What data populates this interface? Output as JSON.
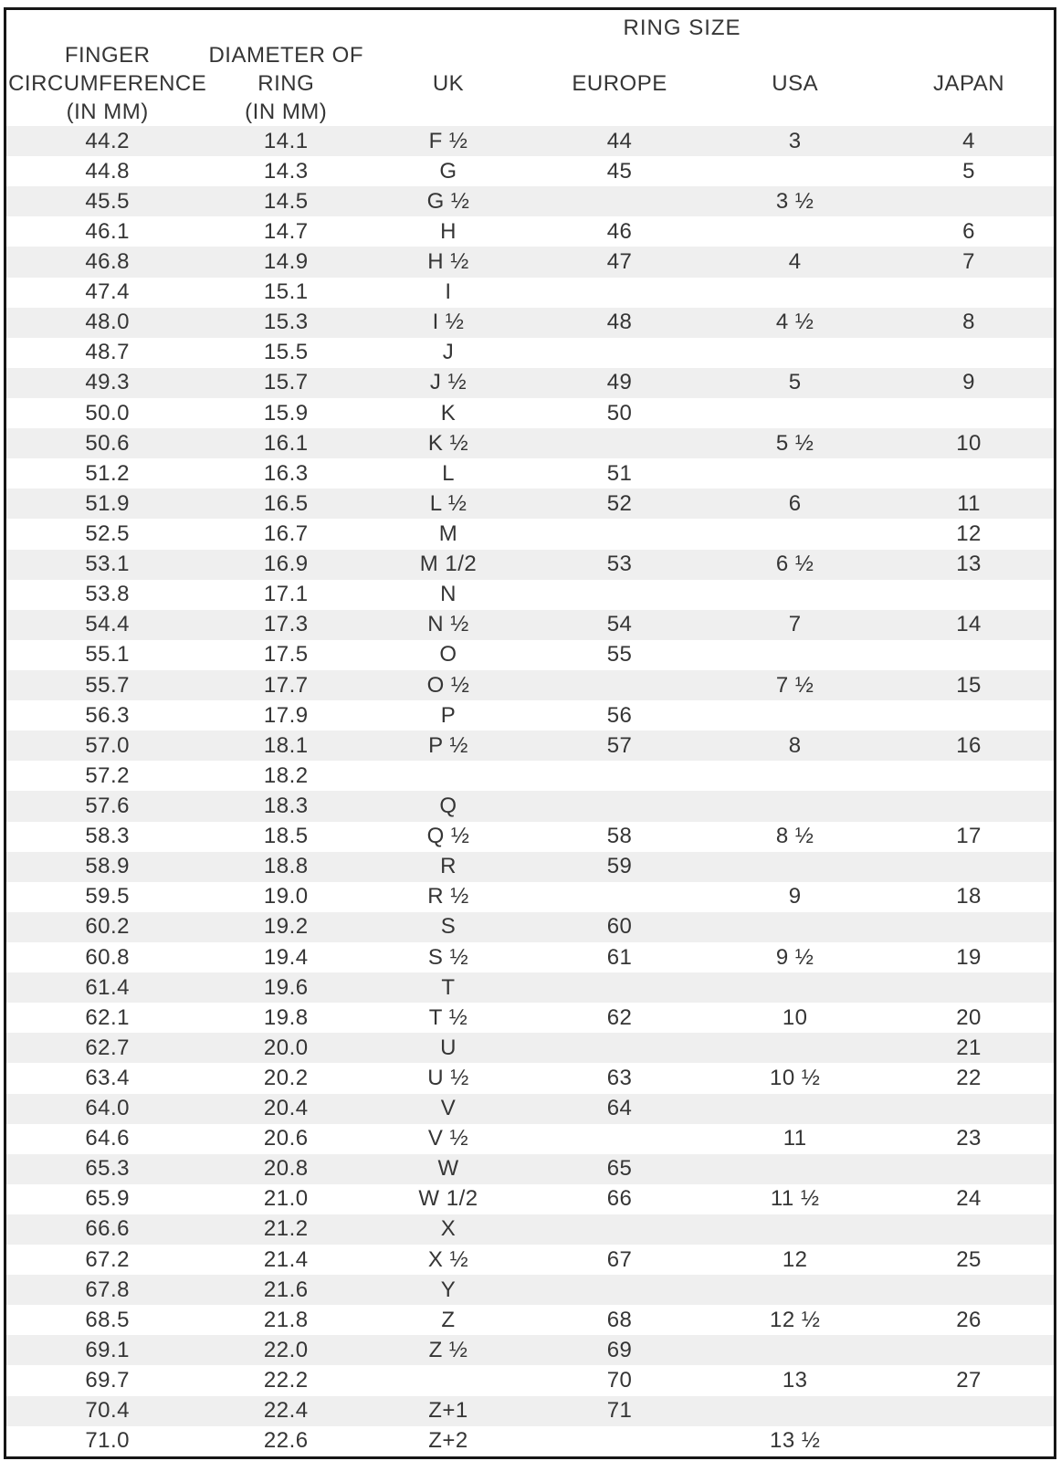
{
  "header": {
    "group_title": "RING SIZE",
    "columns": [
      {
        "id": "circumference",
        "lines": [
          "FINGER",
          "CIRCUMFERENCE",
          "(IN MM)"
        ]
      },
      {
        "id": "diameter",
        "lines": [
          "DIAMETER OF",
          "RING",
          "(IN MM)"
        ]
      },
      {
        "id": "uk",
        "lines": [
          "UK"
        ]
      },
      {
        "id": "europe",
        "lines": [
          "EUROPE"
        ]
      },
      {
        "id": "usa",
        "lines": [
          "USA"
        ]
      },
      {
        "id": "japan",
        "lines": [
          "JAPAN"
        ]
      }
    ]
  },
  "rows": [
    [
      "44.2",
      "14.1",
      "F ½",
      "44",
      "3",
      "4"
    ],
    [
      "44.8",
      "14.3",
      "G",
      "45",
      "",
      "5"
    ],
    [
      "45.5",
      "14.5",
      "G ½",
      "",
      "3 ½",
      ""
    ],
    [
      "46.1",
      "14.7",
      "H",
      "46",
      "",
      "6"
    ],
    [
      "46.8",
      "14.9",
      "H ½",
      "47",
      "4",
      "7"
    ],
    [
      "47.4",
      "15.1",
      "I",
      "",
      "",
      ""
    ],
    [
      "48.0",
      "15.3",
      "I ½",
      "48",
      "4 ½",
      "8"
    ],
    [
      "48.7",
      "15.5",
      "J",
      "",
      "",
      ""
    ],
    [
      "49.3",
      "15.7",
      "J ½",
      "49",
      "5",
      "9"
    ],
    [
      "50.0",
      "15.9",
      "K",
      "50",
      "",
      ""
    ],
    [
      "50.6",
      "16.1",
      "K ½",
      "",
      "5 ½",
      "10"
    ],
    [
      "51.2",
      "16.3",
      "L",
      "51",
      "",
      ""
    ],
    [
      "51.9",
      "16.5",
      "L ½",
      "52",
      "6",
      "11"
    ],
    [
      "52.5",
      "16.7",
      "M",
      "",
      "",
      "12"
    ],
    [
      "53.1",
      "16.9",
      "M 1/2",
      "53",
      "6 ½",
      "13"
    ],
    [
      "53.8",
      "17.1",
      "N",
      "",
      "",
      ""
    ],
    [
      "54.4",
      "17.3",
      "N ½",
      "54",
      "7",
      "14"
    ],
    [
      "55.1",
      "17.5",
      "O",
      "55",
      "",
      ""
    ],
    [
      "55.7",
      "17.7",
      "O ½",
      "",
      "7 ½",
      "15"
    ],
    [
      "56.3",
      "17.9",
      "P",
      "56",
      "",
      ""
    ],
    [
      "57.0",
      "18.1",
      "P ½",
      "57",
      "8",
      "16"
    ],
    [
      "57.2",
      "18.2",
      "",
      "",
      "",
      ""
    ],
    [
      "57.6",
      "18.3",
      "Q",
      "",
      "",
      ""
    ],
    [
      "58.3",
      "18.5",
      "Q ½",
      "58",
      "8 ½",
      "17"
    ],
    [
      "58.9",
      "18.8",
      "R",
      "59",
      "",
      ""
    ],
    [
      "59.5",
      "19.0",
      "R ½",
      "",
      "9",
      "18"
    ],
    [
      "60.2",
      "19.2",
      "S",
      "60",
      "",
      ""
    ],
    [
      "60.8",
      "19.4",
      "S ½",
      "61",
      "9 ½",
      "19"
    ],
    [
      "61.4",
      "19.6",
      "T",
      "",
      "",
      ""
    ],
    [
      "62.1",
      "19.8",
      "T ½",
      "62",
      "10",
      "20"
    ],
    [
      "62.7",
      "20.0",
      "U",
      "",
      "",
      "21"
    ],
    [
      "63.4",
      "20.2",
      "U ½",
      "63",
      "10 ½",
      "22"
    ],
    [
      "64.0",
      "20.4",
      "V",
      "64",
      "",
      ""
    ],
    [
      "64.6",
      "20.6",
      "V ½",
      "",
      "11",
      "23"
    ],
    [
      "65.3",
      "20.8",
      "W",
      "65",
      "",
      ""
    ],
    [
      "65.9",
      "21.0",
      "W 1/2",
      "66",
      "11 ½",
      "24"
    ],
    [
      "66.6",
      "21.2",
      "X",
      "",
      "",
      ""
    ],
    [
      "67.2",
      "21.4",
      "X ½",
      "67",
      "12",
      "25"
    ],
    [
      "67.8",
      "21.6",
      "Y",
      "",
      "",
      ""
    ],
    [
      "68.5",
      "21.8",
      "Z",
      "68",
      "12 ½",
      "26"
    ],
    [
      "69.1",
      "22.0",
      "Z ½",
      "69",
      "",
      ""
    ],
    [
      "69.7",
      "22.2",
      "",
      "70",
      "13",
      "27"
    ],
    [
      "70.4",
      "22.4",
      "Z+1",
      "71",
      "",
      ""
    ],
    [
      "71.0",
      "22.6",
      "Z+2",
      "",
      "13 ½",
      ""
    ]
  ],
  "colors": {
    "stripe": "#efefef",
    "text": "#353535",
    "border": "#161616",
    "background": "#ffffff"
  }
}
